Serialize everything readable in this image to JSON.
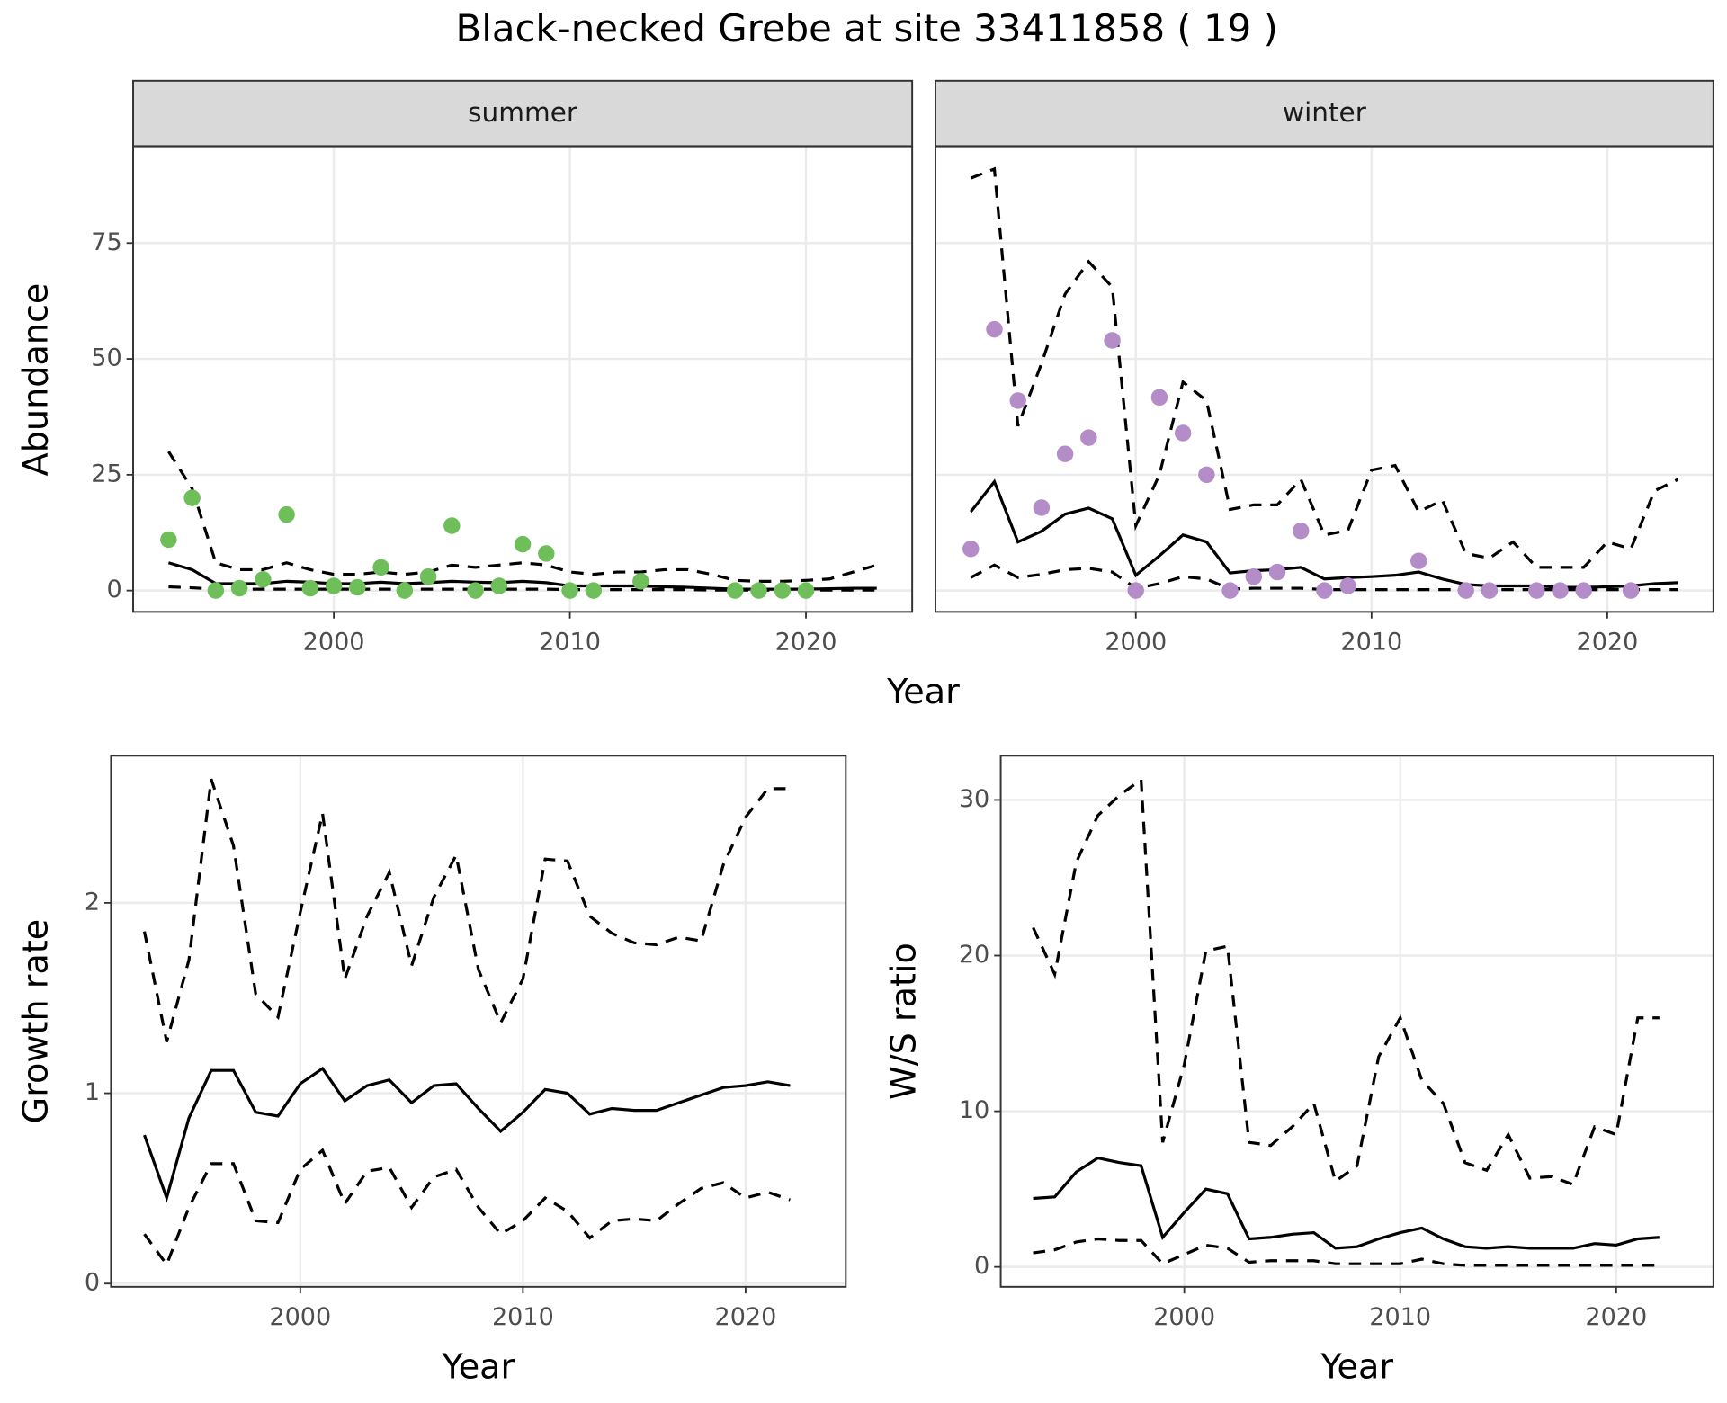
{
  "chart_data": [
    {
      "type": "line",
      "title": "Black-necked Grebe at site 33411858 ( 19 )",
      "xlabel": "Year",
      "ylabel": "Abundance",
      "xlim": [
        1991.5,
        2024.5
      ],
      "ylim": [
        -4.6,
        95.7
      ],
      "xticks": [
        2000,
        2010,
        2020
      ],
      "yticks": [
        0,
        25,
        50,
        75
      ],
      "grid": true,
      "facets": [
        {
          "label": "summer",
          "x": [
            1993,
            1994,
            1995,
            1996,
            1997,
            1998,
            1999,
            2000,
            2001,
            2002,
            2003,
            2004,
            2005,
            2006,
            2007,
            2008,
            2009,
            2010,
            2011,
            2012,
            2013,
            2014,
            2015,
            2016,
            2017,
            2018,
            2019,
            2020,
            2021,
            2022,
            2023
          ],
          "series": [
            {
              "color": "#000000",
              "linestyle": "solid",
              "values": [
                6,
                4.5,
                1.5,
                1.5,
                1.5,
                2,
                1.8,
                1.5,
                1.5,
                1.8,
                1.5,
                1.7,
                2,
                1.8,
                1.7,
                2,
                1.7,
                1,
                1,
                1,
                1,
                0.8,
                0.7,
                0.5,
                0.3,
                0.3,
                0.3,
                0.3,
                0.4,
                0.5,
                0.5
              ]
            },
            {
              "color": "#000000",
              "linestyle": "dashed",
              "values": [
                30,
                22,
                6,
                4.5,
                4.5,
                6,
                4.5,
                3.5,
                3.5,
                4,
                3.5,
                4,
                5.5,
                5,
                5.5,
                6,
                5.5,
                4,
                3.5,
                4,
                4,
                4.5,
                4.5,
                3.5,
                2.2,
                2,
                2,
                2.2,
                2.5,
                4,
                5.5
              ]
            },
            {
              "color": "#000000",
              "linestyle": "dashed",
              "values": [
                0.8,
                0.6,
                0.3,
                0.3,
                0.3,
                0.3,
                0.3,
                0.3,
                0.3,
                0.3,
                0.3,
                0.3,
                0.3,
                0.3,
                0.3,
                0.3,
                0.3,
                0.2,
                0.2,
                0.2,
                0.2,
                0.2,
                0.2,
                0.1,
                0.1,
                0.1,
                0.1,
                0.1,
                0.1,
                0.1,
                0.1
              ]
            }
          ],
          "points": {
            "color": "#6ebe5a",
            "x": [
              1993,
              1994,
              1995,
              1996,
              1997,
              1998,
              1999,
              2000,
              2001,
              2002,
              2003,
              2004,
              2005,
              2006,
              2007,
              2008,
              2009,
              2010,
              2011,
              2013,
              2017,
              2018,
              2019,
              2020
            ],
            "values": [
              11,
              20,
              0,
              0.5,
              2.4,
              16.4,
              0.5,
              1,
              0.7,
              5,
              0,
              3,
              14,
              0,
              1,
              10,
              8,
              0,
              0,
              2,
              0,
              0,
              0,
              0
            ]
          }
        },
        {
          "label": "winter",
          "x": [
            1993,
            1994,
            1995,
            1996,
            1997,
            1998,
            1999,
            2000,
            2001,
            2002,
            2003,
            2004,
            2005,
            2006,
            2007,
            2008,
            2009,
            2010,
            2011,
            2012,
            2013,
            2014,
            2015,
            2016,
            2017,
            2018,
            2019,
            2020,
            2021,
            2022,
            2023
          ],
          "series": [
            {
              "color": "#000000",
              "linestyle": "solid",
              "values": [
                17,
                23.5,
                10.5,
                12.8,
                16.5,
                17.8,
                15.5,
                3.3,
                7.5,
                12,
                10.5,
                3.8,
                4.3,
                4.5,
                5,
                2.5,
                2.8,
                3,
                3.3,
                4,
                2.5,
                1.3,
                1,
                1,
                1,
                0.7,
                0.7,
                0.8,
                1,
                1.5,
                1.7
              ]
            },
            {
              "color": "#000000",
              "linestyle": "dashed",
              "values": [
                89,
                91,
                35.5,
                49,
                64,
                71,
                65.5,
                14,
                25,
                45,
                41,
                17.5,
                18.5,
                18.5,
                24,
                12,
                13,
                26,
                27,
                17,
                19.5,
                8,
                7,
                10.5,
                5,
                5,
                5,
                10.5,
                9,
                21.5,
                24
              ]
            },
            {
              "color": "#000000",
              "linestyle": "dashed",
              "values": [
                2.8,
                5.5,
                2.8,
                3.5,
                4.5,
                4.8,
                4,
                0.5,
                1.5,
                3,
                2.5,
                0.3,
                0.5,
                0.5,
                0.5,
                0.2,
                0.2,
                0.2,
                0.2,
                0.2,
                0.2,
                0.2,
                0.2,
                0.2,
                0.2,
                0.2,
                0.2,
                0.2,
                0.2,
                0.2,
                0.2
              ]
            }
          ],
          "points": {
            "color": "#b48cc8",
            "x": [
              1993,
              1994,
              1995,
              1996,
              1997,
              1998,
              1999,
              2000,
              2001,
              2002,
              2003,
              2004,
              2005,
              2006,
              2007,
              2008,
              2009,
              2012,
              2014,
              2015,
              2017,
              2018,
              2019,
              2021
            ],
            "values": [
              9,
              56.4,
              41,
              17.9,
              29.5,
              33,
              54,
              0,
              41.7,
              34,
              25,
              0,
              3,
              4,
              12.9,
              0,
              1,
              6.4,
              0,
              0,
              0,
              0,
              0,
              0
            ]
          }
        }
      ]
    },
    {
      "type": "line",
      "xlabel": "Year",
      "ylabel": "Growth rate",
      "xlim": [
        1991.5,
        2024.5
      ],
      "ylim": [
        -0.017,
        2.773
      ],
      "xticks": [
        2000,
        2010,
        2020
      ],
      "yticks": [
        0,
        1,
        2
      ],
      "grid": true,
      "x": [
        1993,
        1994,
        1995,
        1996,
        1997,
        1998,
        1999,
        2000,
        2001,
        2002,
        2003,
        2004,
        2005,
        2006,
        2007,
        2008,
        2009,
        2010,
        2011,
        2012,
        2013,
        2014,
        2015,
        2016,
        2017,
        2018,
        2019,
        2020,
        2021,
        2022
      ],
      "series": [
        {
          "color": "#000000",
          "linestyle": "solid",
          "values": [
            0.78,
            0.45,
            0.87,
            1.12,
            1.12,
            0.9,
            0.88,
            1.05,
            1.13,
            0.96,
            1.04,
            1.07,
            0.95,
            1.04,
            1.05,
            0.92,
            0.8,
            0.9,
            1.02,
            1.0,
            0.89,
            0.92,
            0.91,
            0.91,
            0.95,
            0.99,
            1.03,
            1.04,
            1.06,
            1.04
          ]
        },
        {
          "color": "#000000",
          "linestyle": "dashed",
          "values": [
            1.85,
            1.27,
            1.7,
            2.65,
            2.3,
            1.52,
            1.4,
            1.95,
            2.47,
            1.6,
            1.93,
            2.16,
            1.67,
            2.03,
            2.25,
            1.65,
            1.37,
            1.6,
            2.23,
            2.22,
            1.93,
            1.84,
            1.79,
            1.78,
            1.82,
            1.8,
            2.2,
            2.45,
            2.6,
            2.6
          ]
        },
        {
          "color": "#000000",
          "linestyle": "dashed",
          "values": [
            0.26,
            0.1,
            0.4,
            0.63,
            0.63,
            0.33,
            0.32,
            0.6,
            0.7,
            0.42,
            0.59,
            0.61,
            0.4,
            0.56,
            0.6,
            0.4,
            0.26,
            0.33,
            0.45,
            0.38,
            0.24,
            0.33,
            0.34,
            0.33,
            0.42,
            0.5,
            0.53,
            0.45,
            0.48,
            0.44
          ]
        }
      ]
    },
    {
      "type": "line",
      "xlabel": "Year",
      "ylabel": "W/S ratio",
      "xlim": [
        1991.5,
        2024.5
      ],
      "ylim": [
        -1.28,
        32.84
      ],
      "xticks": [
        2000,
        2010,
        2020
      ],
      "yticks": [
        0,
        10,
        20,
        30
      ],
      "grid": true,
      "x": [
        1993,
        1994,
        1995,
        1996,
        1997,
        1998,
        1999,
        2000,
        2001,
        2002,
        2003,
        2004,
        2005,
        2006,
        2007,
        2008,
        2009,
        2010,
        2011,
        2012,
        2013,
        2014,
        2015,
        2016,
        2017,
        2018,
        2019,
        2020,
        2021,
        2022
      ],
      "series": [
        {
          "color": "#000000",
          "linestyle": "solid",
          "values": [
            4.4,
            4.5,
            6.1,
            7,
            6.7,
            6.5,
            1.9,
            3.5,
            5,
            4.7,
            1.8,
            1.9,
            2.1,
            2.2,
            1.2,
            1.3,
            1.8,
            2.2,
            2.5,
            1.8,
            1.3,
            1.2,
            1.3,
            1.2,
            1.2,
            1.2,
            1.5,
            1.4,
            1.8,
            1.9
          ]
        },
        {
          "color": "#000000",
          "linestyle": "dashed",
          "values": [
            21.8,
            18.8,
            26,
            29,
            30.3,
            31.3,
            8,
            13,
            20.3,
            20.6,
            8,
            7.8,
            9,
            10.5,
            5.5,
            6.5,
            13.5,
            16,
            12,
            10.5,
            6.7,
            6.2,
            8.5,
            5.7,
            5.8,
            5.3,
            9,
            8.5,
            16,
            16
          ]
        },
        {
          "color": "#000000",
          "linestyle": "dashed",
          "values": [
            0.9,
            1.1,
            1.6,
            1.8,
            1.7,
            1.7,
            0.2,
            0.8,
            1.4,
            1.2,
            0.3,
            0.4,
            0.4,
            0.4,
            0.2,
            0.2,
            0.2,
            0.2,
            0.5,
            0.2,
            0.1,
            0.1,
            0.1,
            0.1,
            0.1,
            0.1,
            0.1,
            0.1,
            0.1,
            0.1
          ]
        }
      ]
    }
  ]
}
